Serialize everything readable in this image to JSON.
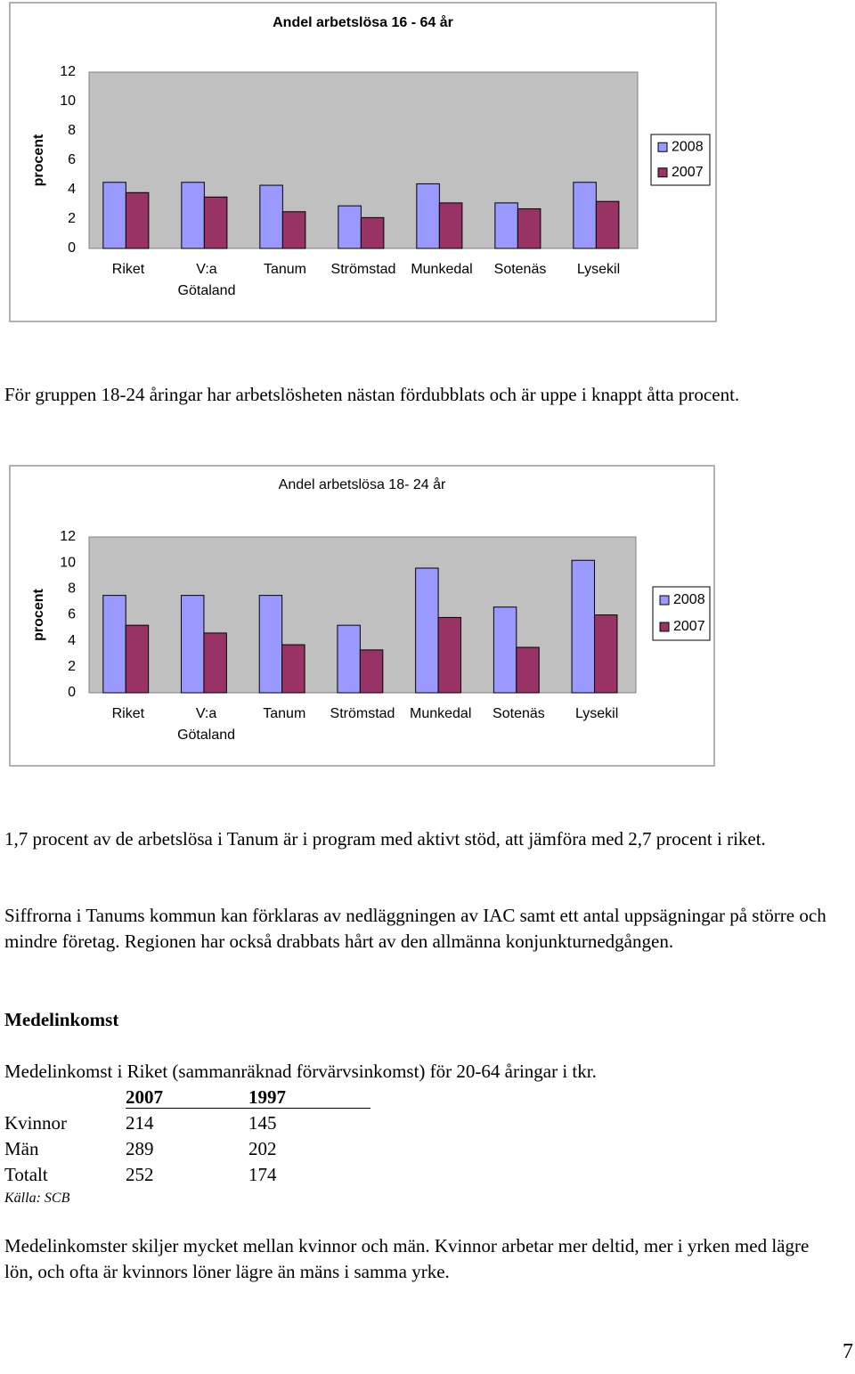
{
  "chart_data": [
    {
      "type": "bar",
      "title": "Andel arbetslösa 16 - 64 år",
      "ylabel": "procent",
      "categories": [
        "Riket",
        "V:a Götaland",
        "Tanum",
        "Strömstad",
        "Munkedal",
        "Sotenäs",
        "Lysekil"
      ],
      "series": [
        {
          "name": "2008",
          "color": "#9999ff",
          "values": [
            4.5,
            4.5,
            4.3,
            2.9,
            4.4,
            3.1,
            4.5
          ]
        },
        {
          "name": "2007",
          "color": "#993366",
          "values": [
            3.8,
            3.5,
            2.5,
            2.1,
            3.1,
            2.7,
            3.2
          ]
        }
      ],
      "ylim": [
        0,
        12
      ],
      "yticks": [
        0,
        2,
        4,
        6,
        8,
        10,
        12
      ],
      "grid": false,
      "legend": "right",
      "title_bold": true
    },
    {
      "type": "bar",
      "title": "Andel arbetslösa 18- 24 år",
      "ylabel": "procent",
      "categories": [
        "Riket",
        "V:a Götaland",
        "Tanum",
        "Strömstad",
        "Munkedal",
        "Sotenäs",
        "Lysekil"
      ],
      "series": [
        {
          "name": "2008",
          "color": "#9999ff",
          "values": [
            7.5,
            7.5,
            7.5,
            5.2,
            9.6,
            6.6,
            10.2
          ]
        },
        {
          "name": "2007",
          "color": "#993366",
          "values": [
            5.2,
            4.6,
            3.7,
            3.3,
            5.8,
            3.5,
            6.0
          ]
        }
      ],
      "ylim": [
        0,
        12
      ],
      "yticks": [
        0,
        2,
        4,
        6,
        8,
        10,
        12
      ],
      "grid": false,
      "legend": "right",
      "title_bold": false
    }
  ],
  "paragraphs": [
    "För gruppen 18-24 åringar har arbetslösheten nästan fördubblats och är uppe i knappt åtta procent.",
    "1,7 procent av de arbetslösa i Tanum är i program med aktivt stöd, att jämföra med 2,7 procent i riket.",
    "Siffrorna i Tanums kommun kan förklaras av nedläggningen av IAC samt ett antal uppsägningar på större och mindre företag. Regionen har också drabbats hårt av den allmänna konjunkturnedgången.",
    "Medelinkomst i Riket (sammanräknad förvärvsinkomst) för 20-64 åringar i tkr.",
    "Medelinkomster skiljer mycket mellan kvinnor och män. Kvinnor arbetar mer deltid, mer i yrken med lägre lön, och ofta är kvinnors löner lägre än mäns i samma yrke."
  ],
  "heading": "Medelinkomst",
  "table": {
    "columns": [
      2007,
      1997
    ],
    "rows": [
      {
        "label": "Kvinnor",
        "values": [
          214,
          145
        ]
      },
      {
        "label": "Män",
        "values": [
          289,
          202
        ]
      },
      {
        "label": "Totalt",
        "values": [
          252,
          174
        ]
      }
    ]
  },
  "source": "Källa: SCB",
  "page_number": 7
}
